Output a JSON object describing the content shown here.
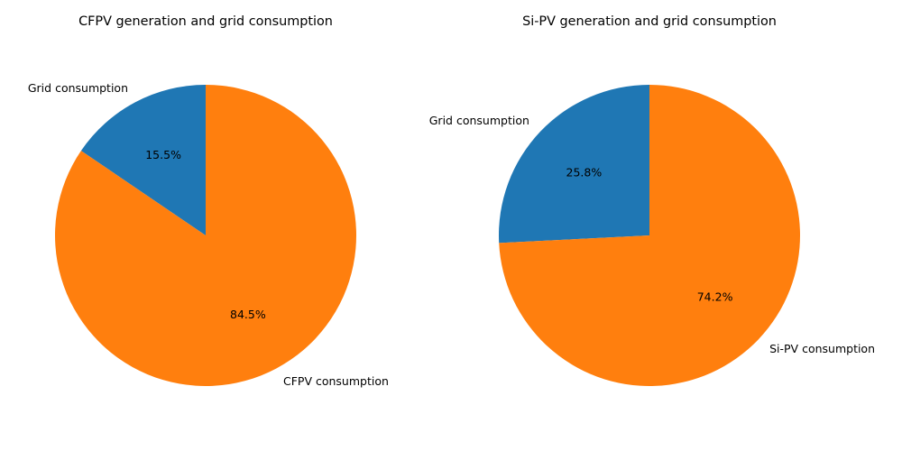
{
  "chart_data": [
    {
      "type": "pie",
      "title": "CFPV generation and grid consumption",
      "categories": [
        "Grid consumption",
        "CFPV consumption"
      ],
      "values": [
        15.5,
        84.5
      ],
      "pct_labels": [
        "15.5%",
        "84.5%"
      ],
      "colors": [
        "#1f77b4",
        "#ff7f0e"
      ],
      "start_angle": 90,
      "direction": "counterclockwise"
    },
    {
      "type": "pie",
      "title": "Si-PV generation and grid consumption",
      "categories": [
        "Grid consumption",
        "Si-PV consumption"
      ],
      "values": [
        25.8,
        74.2
      ],
      "pct_labels": [
        "25.8%",
        "74.2%"
      ],
      "colors": [
        "#1f77b4",
        "#ff7f0e"
      ],
      "start_angle": 90,
      "direction": "counterclockwise"
    }
  ]
}
